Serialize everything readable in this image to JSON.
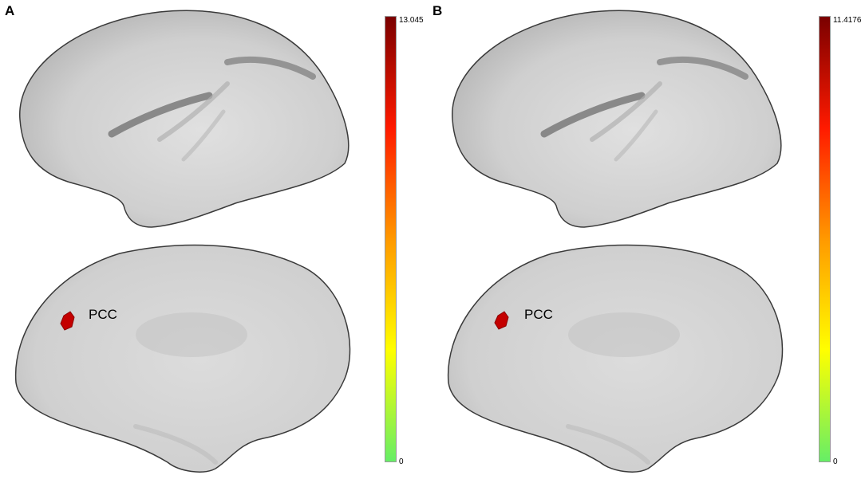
{
  "panels": [
    {
      "letter": "A",
      "region_label": "PCC",
      "colorbar": {
        "max_label": "13.045",
        "min_label": "0",
        "max": 13.045,
        "min": 0
      }
    },
    {
      "letter": "B",
      "region_label": "PCC",
      "colorbar": {
        "max_label": "11.4176",
        "min_label": "0",
        "max": 11.4176,
        "min": 0
      }
    }
  ],
  "colors": {
    "brain_surface": "#d4d4d4",
    "brain_outline": "#3a3a3a",
    "activation": "#c40000",
    "colorbar_stops": [
      "#66ee66",
      "#ffff00",
      "#ff9900",
      "#ff0000",
      "#7a0000"
    ]
  }
}
